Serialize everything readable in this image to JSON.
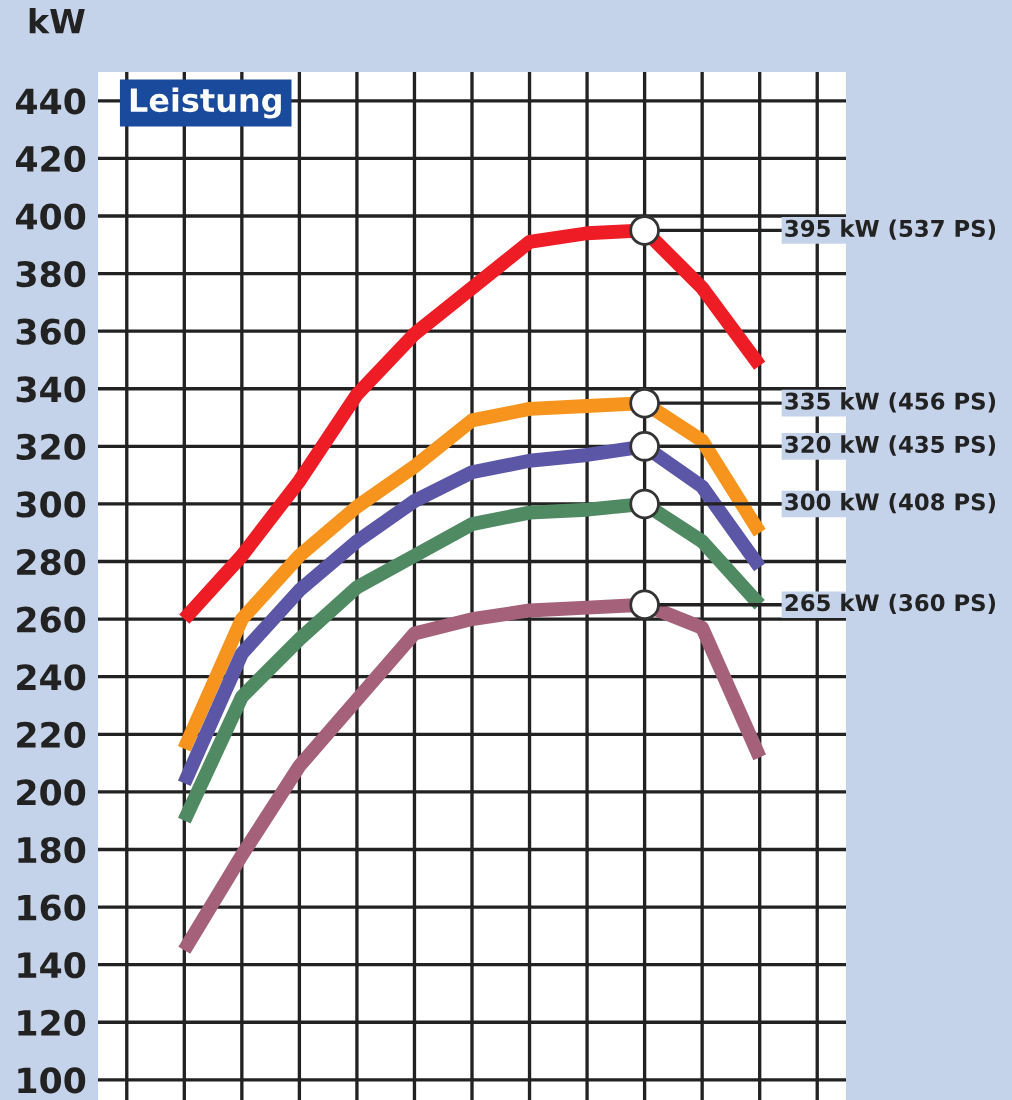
{
  "chart_data": {
    "type": "line",
    "title": "Leistung",
    "ylabel": "kW",
    "categories": [
      null,
      null,
      null,
      null,
      null,
      null,
      null,
      null,
      null,
      null,
      null,
      null,
      null
    ],
    "series": [
      {
        "color": "#ee1c25",
        "values": [
          null,
          260,
          282,
          308,
          338,
          359,
          375,
          391,
          394,
          395,
          375,
          348,
          null
        ]
      },
      {
        "color": "#f7941d",
        "values": [
          null,
          215,
          260,
          282,
          299,
          313,
          329,
          333,
          334,
          335,
          322,
          290,
          null
        ]
      },
      {
        "color": "#5b57a6",
        "values": [
          null,
          203,
          248,
          270,
          287,
          301,
          311,
          315,
          317,
          320,
          306,
          278,
          null
        ]
      },
      {
        "color": "#4f8a63",
        "values": [
          null,
          190,
          233,
          253,
          271,
          282,
          293,
          297,
          298,
          300,
          287,
          265,
          null
        ]
      },
      {
        "color": "#a5607a",
        "values": [
          null,
          145,
          178,
          209,
          232,
          255,
          260,
          263,
          264,
          265,
          257,
          212,
          null
        ]
      }
    ],
    "annotations": [
      "395 kW (537 PS)",
      "335 kW (456 PS)",
      "320 kW (435 PS)",
      "300 kW (408 PS)",
      "265 kW (360 PS)"
    ],
    "ylim": [
      93,
      450
    ],
    "yticks": [
      100,
      120,
      140,
      160,
      180,
      200,
      220,
      240,
      260,
      280,
      300,
      320,
      340,
      360,
      380,
      400,
      420,
      440
    ],
    "grid": true,
    "tick_labels": "y",
    "line_style": "solid",
    "marker": "none"
  }
}
